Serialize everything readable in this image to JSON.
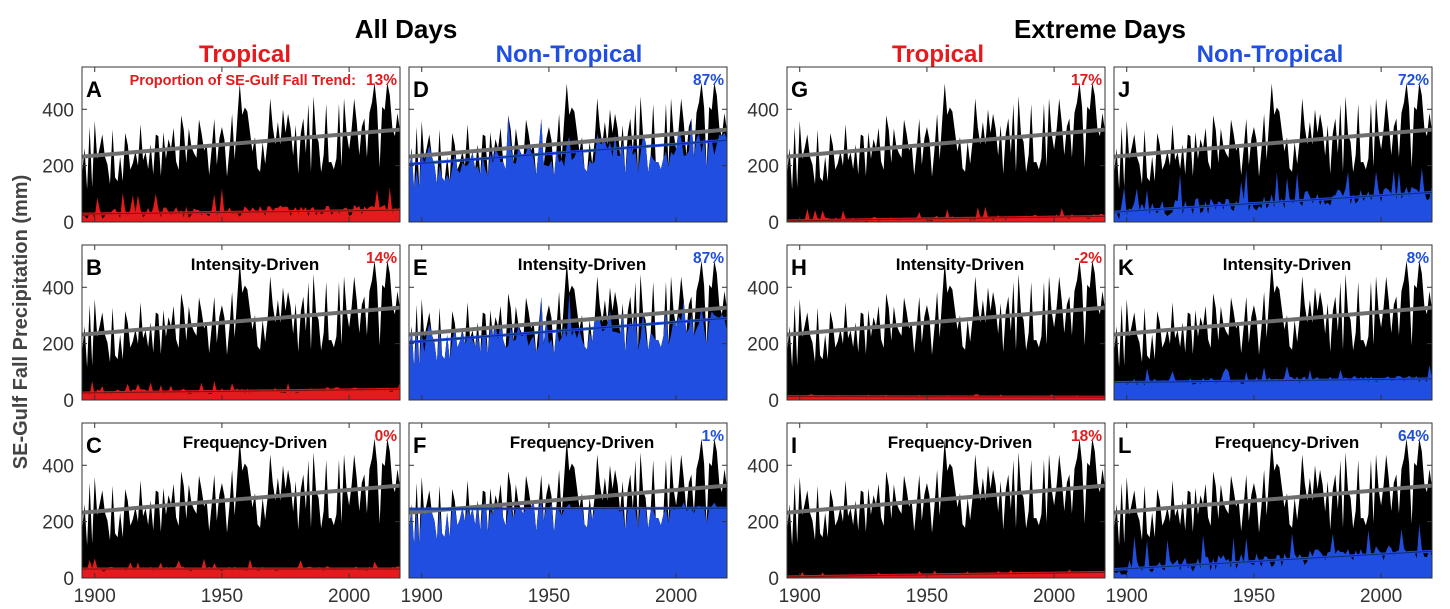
{
  "figure": {
    "groups": [
      {
        "title": "All Days"
      },
      {
        "title": "Extreme Days"
      }
    ],
    "columns": [
      {
        "title": "Tropical",
        "color": "#e41a1c"
      },
      {
        "title": "Non-Tropical",
        "color": "#1f4ee0"
      },
      {
        "title": "Tropical",
        "color": "#e41a1c"
      },
      {
        "title": "Non-Tropical",
        "color": "#1f4ee0"
      }
    ],
    "ylabel": "SE-Gulf Fall Precipitation (mm)",
    "proportion_label": "Proportion of SE-Gulf Fall Trend:",
    "colors": {
      "total_fill": "#000000",
      "total_trend": "#6e6e6e",
      "tropical": "#e41a1c",
      "non_tropical": "#1f4ee0"
    }
  },
  "chart_data": {
    "type": "area",
    "xlim": [
      1895,
      2020
    ],
    "ylim": [
      0,
      550
    ],
    "xticks": [
      1900,
      1950,
      2000
    ],
    "yticks": [
      0,
      200,
      400
    ],
    "grid": false,
    "total_trend": {
      "start": [
        1895,
        232
      ],
      "end": [
        2020,
        328
      ]
    },
    "panels": [
      {
        "id": "A",
        "row": 0,
        "col": 0,
        "subtitle": "",
        "percent": "13%",
        "series": "Tropical",
        "component_mean": 30,
        "component_amp": 40,
        "trend": {
          "start": 28,
          "end": 42
        }
      },
      {
        "id": "B",
        "row": 1,
        "col": 0,
        "subtitle": "Intensity-Driven",
        "percent": "14%",
        "series": "Tropical",
        "component_mean": 28,
        "component_amp": 20,
        "trend": {
          "start": 25,
          "end": 38
        }
      },
      {
        "id": "C",
        "row": 2,
        "col": 0,
        "subtitle": "Frequency-Driven",
        "percent": "0%",
        "series": "Tropical",
        "component_mean": 30,
        "component_amp": 18,
        "trend": {
          "start": 32,
          "end": 32
        }
      },
      {
        "id": "D",
        "row": 0,
        "col": 1,
        "subtitle": "",
        "percent": "87%",
        "series": "Non-Tropical",
        "component_mean": 240,
        "component_amp": 110,
        "trend": {
          "start": 205,
          "end": 290
        }
      },
      {
        "id": "E",
        "row": 1,
        "col": 1,
        "subtitle": "Intensity-Driven",
        "percent": "87%",
        "series": "Non-Tropical",
        "component_mean": 240,
        "component_amp": 110,
        "trend": {
          "start": 205,
          "end": 290
        }
      },
      {
        "id": "F",
        "row": 2,
        "col": 1,
        "subtitle": "Frequency-Driven",
        "percent": "1%",
        "series": "Non-Tropical",
        "component_mean": 245,
        "component_amp": 15,
        "trend": {
          "start": 245,
          "end": 248
        }
      },
      {
        "id": "G",
        "row": 0,
        "col": 2,
        "subtitle": "",
        "percent": "17%",
        "series": "Tropical",
        "component_mean": 10,
        "component_amp": 20,
        "trend": {
          "start": 4,
          "end": 20
        }
      },
      {
        "id": "H",
        "row": 1,
        "col": 2,
        "subtitle": "Intensity-Driven",
        "percent": "-2%",
        "series": "Tropical",
        "component_mean": 12,
        "component_amp": 5,
        "trend": {
          "start": 12,
          "end": 10
        }
      },
      {
        "id": "I",
        "row": 2,
        "col": 2,
        "subtitle": "Frequency-Driven",
        "percent": "18%",
        "series": "Tropical",
        "component_mean": 10,
        "component_amp": 8,
        "trend": {
          "start": 4,
          "end": 20
        }
      },
      {
        "id": "J",
        "row": 0,
        "col": 3,
        "subtitle": "",
        "percent": "72%",
        "series": "Non-Tropical",
        "component_mean": 55,
        "component_amp": 60,
        "trend": {
          "start": 35,
          "end": 105
        }
      },
      {
        "id": "K",
        "row": 1,
        "col": 3,
        "subtitle": "Intensity-Driven",
        "percent": "8%",
        "series": "Non-Tropical",
        "component_mean": 65,
        "component_amp": 25,
        "trend": {
          "start": 62,
          "end": 75
        }
      },
      {
        "id": "L",
        "row": 2,
        "col": 3,
        "subtitle": "Frequency-Driven",
        "percent": "64%",
        "series": "Non-Tropical",
        "component_mean": 55,
        "component_amp": 55,
        "trend": {
          "start": 30,
          "end": 95
        }
      }
    ]
  }
}
